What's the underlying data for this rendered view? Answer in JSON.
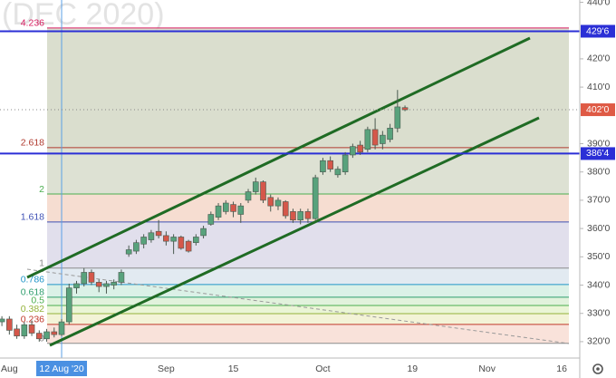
{
  "chart_data": {
    "type": "candlestick",
    "watermark": "(DEC 2020)",
    "categories": [
      null,
      "Aug",
      null,
      null,
      null,
      null,
      null,
      null,
      "12 Aug '20",
      null,
      null,
      null,
      null,
      null,
      null,
      null,
      null,
      null,
      null,
      null,
      null,
      null,
      "Sep",
      null,
      null,
      null,
      null,
      null,
      null,
      null,
      null,
      "15",
      null,
      null,
      null,
      null,
      null,
      null,
      null,
      null,
      null,
      null,
      null,
      "Oct",
      null,
      null,
      null,
      null,
      null,
      null,
      null,
      null,
      null,
      null,
      null,
      "19",
      null,
      null,
      null,
      null,
      null,
      null,
      null,
      null,
      null,
      "Nov",
      null,
      null,
      null,
      null,
      null,
      null,
      null,
      null,
      null,
      "16",
      null,
      null
    ],
    "open": [
      327,
      328,
      324.5,
      322,
      326,
      323,
      321,
      323.5,
      322.5,
      327,
      339,
      340.5,
      344.5,
      341,
      339.5,
      340,
      341,
      351,
      352,
      354.5,
      356,
      359,
      357.5,
      355.5,
      357,
      355.5,
      355,
      357.5,
      361.5,
      364,
      366,
      368.5,
      365,
      370,
      373,
      376.5,
      371,
      368,
      369.5,
      366,
      363,
      366,
      363.5,
      380,
      384,
      379,
      380,
      386,
      389.5,
      388,
      395,
      390,
      391.5,
      395.5,
      402.75,
      null,
      null,
      null,
      null,
      null,
      null,
      null,
      null,
      null,
      null,
      null,
      null,
      null,
      null,
      null,
      null,
      null,
      null,
      null,
      null,
      null,
      null,
      null
    ],
    "high": [
      329,
      329,
      326,
      327,
      327.5,
      324,
      324.5,
      325,
      328,
      340.5,
      341.5,
      346,
      345.5,
      342,
      341.5,
      342,
      345.5,
      354,
      356,
      358,
      359.5,
      363,
      359,
      358,
      357.5,
      356,
      358,
      361,
      366,
      369,
      370,
      369.5,
      369,
      374,
      378,
      377,
      372,
      371,
      370,
      367,
      367,
      367,
      379,
      385,
      385.5,
      382,
      387,
      390,
      391,
      396,
      399,
      394.5,
      397,
      409,
      403.5,
      null,
      null,
      null,
      null,
      null,
      null,
      null,
      null,
      null,
      null,
      null,
      null,
      null,
      null,
      null,
      null,
      null,
      null,
      null,
      null,
      null,
      null,
      null
    ],
    "low": [
      325.5,
      322.5,
      321,
      321,
      322,
      320,
      320,
      321.5,
      322,
      326,
      337,
      339.5,
      340,
      337.5,
      337,
      338.5,
      340,
      350,
      351,
      353,
      355,
      356.5,
      354,
      351,
      352.5,
      351.5,
      354,
      356.5,
      361,
      363,
      365,
      364,
      362,
      369,
      372,
      369,
      366,
      366.5,
      363.5,
      362,
      361.5,
      362,
      363,
      379,
      380,
      378,
      379,
      385,
      386,
      387,
      388,
      388,
      390.5,
      394,
      401.5,
      null,
      null,
      null,
      null,
      null,
      null,
      null,
      null,
      null,
      null,
      null,
      null,
      null,
      null,
      null,
      null,
      null,
      null,
      null,
      null,
      null,
      null,
      null
    ],
    "close": [
      328,
      324,
      322,
      326,
      323,
      321,
      323.5,
      322.5,
      327,
      339,
      340.5,
      344.5,
      341,
      339.5,
      340.5,
      341,
      344.5,
      352.5,
      355,
      357,
      358.5,
      357.5,
      355.5,
      357,
      353,
      352,
      357,
      360,
      365,
      368,
      369,
      366,
      368,
      373,
      376.5,
      370,
      368,
      370,
      364.5,
      363,
      366,
      363.5,
      378,
      384,
      381,
      381,
      386,
      389,
      387,
      395,
      389.5,
      393,
      395.5,
      403,
      402,
      null,
      null,
      null,
      null,
      null,
      null,
      null,
      null,
      null,
      null,
      null,
      null,
      null,
      null,
      null,
      null,
      null,
      null,
      null,
      null,
      null,
      null,
      null
    ],
    "up_color": "#58a27c",
    "down_color": "#d5574a",
    "crosshair": 8,
    "ylim": [
      314.2,
      440.8
    ],
    "yticks": [
      {
        "value": 320,
        "label": "320'0"
      },
      {
        "value": 330,
        "label": "330'0"
      },
      {
        "value": 340,
        "label": "340'0"
      },
      {
        "value": 350,
        "label": "350'0"
      },
      {
        "value": 360,
        "label": "360'0"
      },
      {
        "value": 370,
        "label": "370'0"
      },
      {
        "value": 380,
        "label": "380'0"
      },
      {
        "value": 390,
        "label": "390'0"
      },
      {
        "value": 410,
        "label": "410'0"
      },
      {
        "value": 420,
        "label": "420'0"
      },
      {
        "value": 440,
        "label": "440'0"
      }
    ],
    "price_lines": [
      {
        "value": 429.75,
        "label": "429'6",
        "color": "#2b2fd6",
        "line": "solid"
      },
      {
        "value": 386.5,
        "label": "386'4",
        "color": "#2b2fd6",
        "line": "solid"
      },
      {
        "value": 402,
        "label": "402'0",
        "color": "#df5a45",
        "line": "dotted"
      }
    ],
    "fib": {
      "levels": [
        0,
        0.236,
        0.382,
        0.5,
        0.618,
        0.786,
        1,
        1.618,
        2,
        2.618,
        4.236
      ],
      "prices": [
        319.4,
        326.1,
        329.9,
        332.8,
        335.7,
        340.2,
        346.0,
        362.3,
        372.2,
        388.6,
        430.9
      ],
      "colors": [
        "#8c8c8c",
        "#c0392b",
        "#94b23a",
        "#4caf50",
        "#2f9e6e",
        "#2196c8",
        "#8c8c8c",
        "#3f51b5",
        "#4caf50",
        "#b03a2e",
        "#d81b60"
      ],
      "fills": [
        "#f8ddd4",
        "#f1f1d0",
        "#e6f3cf",
        "#dcf0d6",
        "#d5eee3",
        "#dde6ef",
        "#dcd9e9",
        "#f4d7c9",
        "#d7dccb",
        "#d4d8c6"
      ]
    }
  }
}
